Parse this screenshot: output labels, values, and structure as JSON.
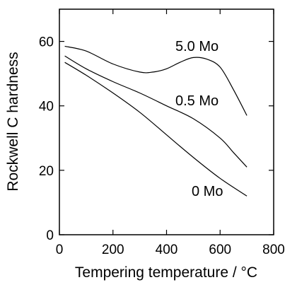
{
  "chart_data": {
    "type": "line",
    "xlabel": "Tempering temperature / °C",
    "ylabel": "Rockwell C hardness",
    "xlim": [
      0,
      800
    ],
    "ylim": [
      0,
      70
    ],
    "xticks": [
      0,
      200,
      400,
      600,
      800
    ],
    "yticks": [
      0,
      20,
      40,
      60
    ],
    "x_tick_labels": [
      "0",
      "200",
      "400",
      "600",
      "800"
    ],
    "y_tick_labels": [
      "0",
      "20",
      "40",
      "60"
    ],
    "grid": false,
    "legend": "none (series labelled directly on curves)",
    "line_color": "#000000",
    "series": [
      {
        "name": "5.0 Mo",
        "x": [
          20,
          100,
          200,
          300,
          350,
          400,
          450,
          500,
          550,
          600,
          650,
          700
        ],
        "y": [
          58.5,
          57,
          53,
          50.5,
          50.5,
          51.5,
          53.5,
          55,
          54.5,
          52,
          45,
          37
        ]
      },
      {
        "name": "0.5 Mo",
        "x": [
          20,
          100,
          200,
          300,
          400,
          500,
          600,
          650,
          700
        ],
        "y": [
          55.5,
          51.5,
          47.5,
          44,
          40,
          36,
          30,
          25.5,
          21
        ]
      },
      {
        "name": "0 Mo",
        "x": [
          20,
          100,
          200,
          300,
          400,
          500,
          600,
          700
        ],
        "y": [
          53.5,
          49.5,
          44,
          38,
          31,
          24,
          17.5,
          12
        ]
      }
    ]
  }
}
